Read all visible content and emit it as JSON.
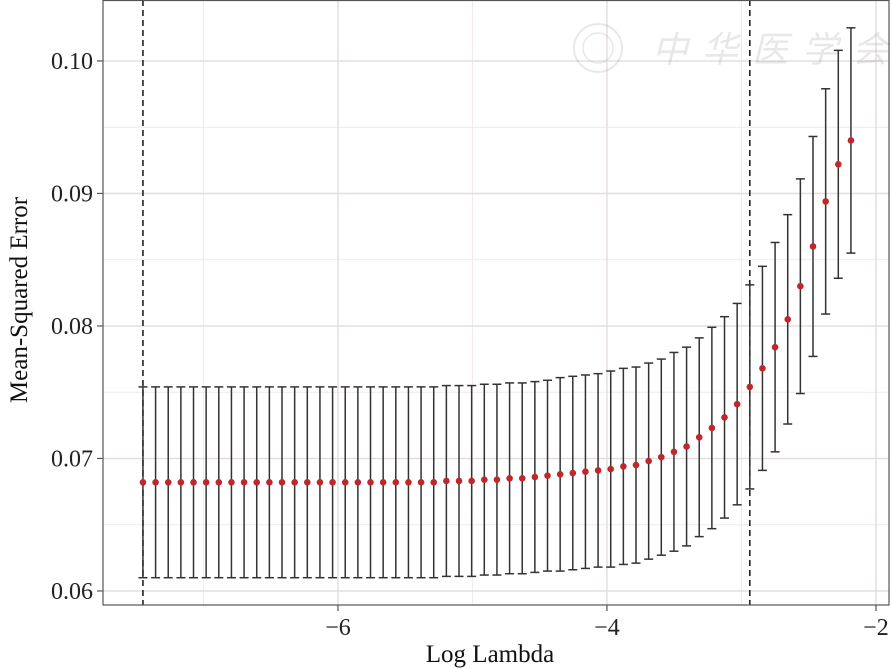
{
  "chart_data": {
    "type": "scatter",
    "subtype": "errorbar",
    "title": "",
    "xlabel": "Log Lambda",
    "ylabel": "Mean-Squared Error",
    "xlim": [
      -7.747,
      -1.903
    ],
    "ylim": [
      0.05894,
      0.1046
    ],
    "xticks": [
      -6,
      -4,
      -2
    ],
    "xtick_labels": [
      "−6",
      "−4",
      "−2"
    ],
    "yticks": [
      0.06,
      0.07,
      0.08,
      0.09,
      0.1
    ],
    "ytick_labels": [
      "0.06",
      "0.07",
      "0.08",
      "0.09",
      "0.10"
    ],
    "grid": true,
    "point_color": "#c0272d",
    "errorbar_color": "#333333",
    "vlines": [
      -7.45,
      -2.938
    ],
    "x": [
      -7.45,
      -7.356,
      -7.262,
      -7.168,
      -7.074,
      -6.98,
      -6.886,
      -6.792,
      -6.698,
      -6.604,
      -6.51,
      -6.416,
      -6.322,
      -6.228,
      -6.134,
      -6.04,
      -5.946,
      -5.852,
      -5.758,
      -5.664,
      -5.57,
      -5.476,
      -5.382,
      -5.288,
      -5.194,
      -5.1,
      -5.006,
      -4.912,
      -4.818,
      -4.724,
      -4.63,
      -4.536,
      -4.442,
      -4.348,
      -4.254,
      -4.16,
      -4.066,
      -3.972,
      -3.878,
      -3.784,
      -3.69,
      -3.596,
      -3.502,
      -3.408,
      -3.314,
      -3.22,
      -3.126,
      -3.032,
      -2.938,
      -2.844,
      -2.75,
      -2.656,
      -2.562,
      -2.468,
      -2.374,
      -2.28,
      -2.186
    ],
    "mse": [
      0.0682,
      0.0682,
      0.0682,
      0.0682,
      0.0682,
      0.0682,
      0.0682,
      0.0682,
      0.0682,
      0.0682,
      0.0682,
      0.0682,
      0.0682,
      0.0682,
      0.0682,
      0.0682,
      0.0682,
      0.0682,
      0.0682,
      0.0682,
      0.0682,
      0.0682,
      0.0682,
      0.0682,
      0.0683,
      0.0683,
      0.0683,
      0.0684,
      0.0684,
      0.0685,
      0.0685,
      0.0686,
      0.0687,
      0.0688,
      0.0689,
      0.069,
      0.0691,
      0.0692,
      0.0694,
      0.0695,
      0.0698,
      0.0701,
      0.0705,
      0.0709,
      0.0716,
      0.0723,
      0.0731,
      0.0741,
      0.0754,
      0.0768,
      0.0784,
      0.0805,
      0.083,
      0.086,
      0.0894,
      0.0922,
      0.094
    ],
    "se": [
      0.0072,
      0.0072,
      0.0072,
      0.0072,
      0.0072,
      0.0072,
      0.0072,
      0.0072,
      0.0072,
      0.0072,
      0.0072,
      0.0072,
      0.0072,
      0.0072,
      0.0072,
      0.0072,
      0.0072,
      0.0072,
      0.0072,
      0.0072,
      0.0072,
      0.0072,
      0.0072,
      0.0072,
      0.0072,
      0.0072,
      0.0072,
      0.0072,
      0.0072,
      0.0072,
      0.0072,
      0.0072,
      0.0072,
      0.0073,
      0.0073,
      0.0073,
      0.0073,
      0.0074,
      0.0074,
      0.0074,
      0.0074,
      0.0074,
      0.0075,
      0.0075,
      0.0075,
      0.0076,
      0.0076,
      0.0076,
      0.0077,
      0.0077,
      0.0079,
      0.0079,
      0.0081,
      0.0083,
      0.0085,
      0.0086,
      0.0085
    ]
  },
  "watermark": "中华医学会"
}
